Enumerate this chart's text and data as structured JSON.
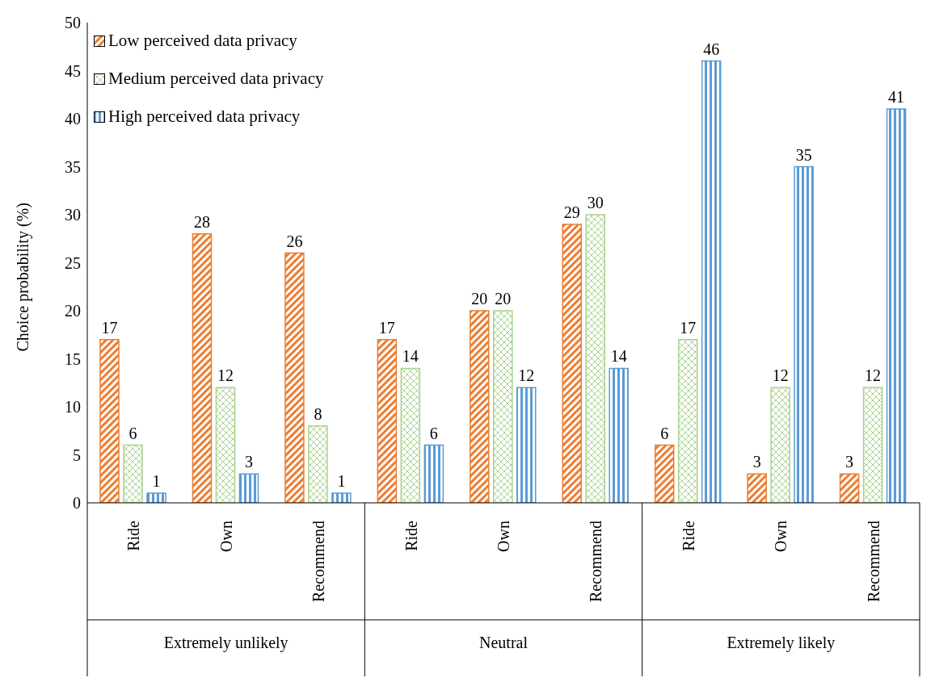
{
  "chart_data": {
    "type": "bar",
    "ylabel": "Choice probability (%)",
    "categories": [
      "Ride",
      "Own",
      "Recommend",
      "Ride",
      "Own",
      "Recommend",
      "Ride",
      "Own",
      "Recommend"
    ],
    "series": [
      {
        "name": "Low perceived data privacy",
        "color": "#ed7d31",
        "values": [
          17,
          28,
          26,
          17,
          20,
          29,
          6,
          3,
          3
        ]
      },
      {
        "name": "Medium perceived data privacy",
        "color": "#a9d18e",
        "values": [
          6,
          12,
          8,
          14,
          20,
          30,
          17,
          12,
          12
        ]
      },
      {
        "name": "High perceived data privacy",
        "color": "#5b9bd5",
        "values": [
          1,
          3,
          1,
          6,
          12,
          14,
          46,
          35,
          41
        ]
      }
    ],
    "annotations": [
      "Extremely unlikely",
      "Neutral",
      "Extremely likely"
    ],
    "ylim": [
      0,
      50
    ],
    "yticks": [
      0,
      5,
      10,
      15,
      20,
      25,
      30,
      35,
      40,
      45,
      50
    ],
    "legend": "top left",
    "data_labels": true
  }
}
